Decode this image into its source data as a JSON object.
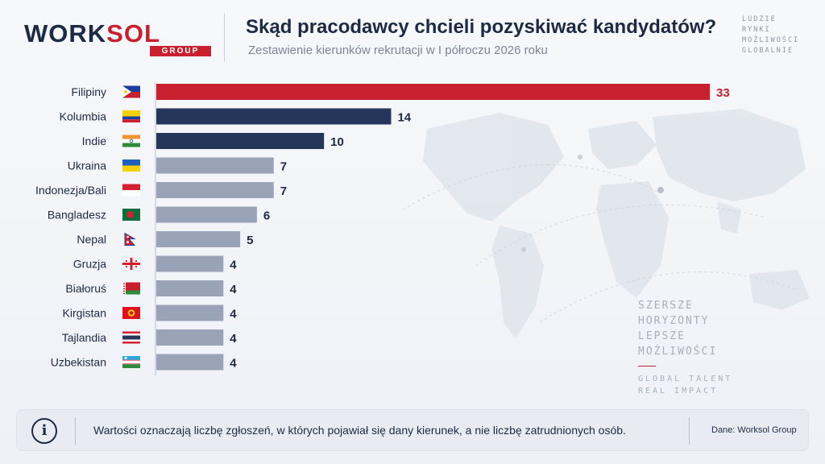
{
  "header": {
    "logo_word_part1": "WORK",
    "logo_word_part2": "SOL",
    "logo_group": "GROUP",
    "title": "Skąd pracodawcy chcieli pozyskiwać kandydatów?",
    "subtitle": "Zestawienie kierunków rekrutacji w I półroczu 2026 roku",
    "tagline": [
      "LUDZIE",
      "RYNKI",
      "MOŻLIWOŚCI",
      "GLOBALNIE"
    ]
  },
  "colors": {
    "highlight": "#c8202f",
    "dark": "#26355a",
    "light": "#98a3b7",
    "text": "#1d2a44"
  },
  "chart_data": {
    "type": "bar",
    "orientation": "horizontal",
    "categories": [
      "Filipiny",
      "Kolumbia",
      "Indie",
      "Ukraina",
      "Indonezja/Bali",
      "Bangladesz",
      "Nepal",
      "Gruzja",
      "Białoruś",
      "Kirgistan",
      "Tajlandia",
      "Uzbekistan"
    ],
    "values": [
      33,
      14,
      10,
      7,
      7,
      6,
      5,
      4,
      4,
      4,
      4,
      4
    ],
    "bar_colors": [
      "highlight",
      "dark",
      "dark",
      "light",
      "light",
      "light",
      "light",
      "light",
      "light",
      "light",
      "light",
      "light"
    ],
    "flag_icons": [
      "flag-philippines-icon",
      "flag-colombia-icon",
      "flag-india-icon",
      "flag-ukraine-icon",
      "flag-indonesia-icon",
      "flag-bangladesh-icon",
      "flag-nepal-icon",
      "flag-georgia-icon",
      "flag-belarus-icon",
      "flag-kyrgyzstan-icon",
      "flag-thailand-icon",
      "flag-uzbekistan-icon"
    ],
    "title": "Skąd pracodawcy chcieli pozyskiwać kandydatów?",
    "xlabel": "",
    "ylabel": "",
    "xlim": [
      0,
      33
    ],
    "grid": false,
    "legend": "none"
  },
  "motto": {
    "lines": [
      "SZERSZE",
      "HORYZONTY",
      "LEPSZE",
      "MOŻLIWOŚCI"
    ],
    "lines2": [
      "GLOBAL TALENT",
      "REAL IMPACT"
    ]
  },
  "footer": {
    "info_icon_glyph": "i",
    "note": "Wartości oznaczają liczbę zgłoszeń, w których pojawiał się dany kierunek, a nie liczbę zatrudnionych osób.",
    "source": "Dane: Worksol Group"
  }
}
